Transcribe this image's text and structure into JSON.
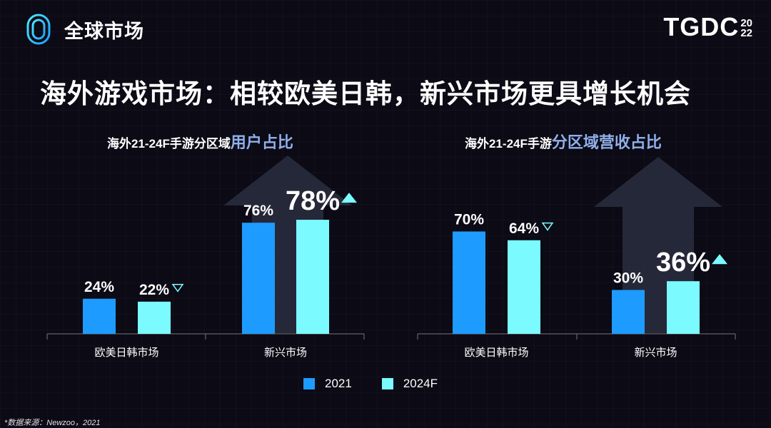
{
  "header": {
    "section_title": "全球市场",
    "brand_main": "TGDC",
    "brand_year_top": "20",
    "brand_year_bottom": "22"
  },
  "headline": "海外游戏市场：相较欧美日韩，新兴市场更具增长机会",
  "colors": {
    "series_2021": "#1e9bff",
    "series_2024F": "#7bfbff",
    "highlight_title": "#8fb0ea",
    "arrow": "#2a2e3e",
    "axis": "#777777"
  },
  "legend": {
    "items": [
      {
        "label": "2021",
        "color": "#1e9bff"
      },
      {
        "label": "2024F",
        "color": "#7bfbff"
      }
    ]
  },
  "source": "*数据来源：Newzoo，2021",
  "chart_data": [
    {
      "type": "bar",
      "title_prefix": "海外21-24F手游分区域",
      "title_highlight": "用户占比",
      "categories": [
        "欧美日韩市场",
        "新兴市场"
      ],
      "series": [
        {
          "name": "2021",
          "values": [
            24,
            76
          ]
        },
        {
          "name": "2024F",
          "values": [
            22,
            78
          ]
        }
      ],
      "value_labels": [
        [
          "24%",
          "76%"
        ],
        [
          "22%",
          "78%"
        ]
      ],
      "trend": [
        "down",
        "up"
      ],
      "emphasis": "新兴市场",
      "ylim": [
        0,
        100
      ],
      "legend": "bottom"
    },
    {
      "type": "bar",
      "title_prefix": "海外21-24F手游",
      "title_highlight": "分区域营收占比",
      "categories": [
        "欧美日韩市场",
        "新兴市场"
      ],
      "series": [
        {
          "name": "2021",
          "values": [
            70,
            30
          ]
        },
        {
          "name": "2024F",
          "values": [
            64,
            36
          ]
        }
      ],
      "value_labels": [
        [
          "70%",
          "30%"
        ],
        [
          "64%",
          "36%"
        ]
      ],
      "trend": [
        "down",
        "up"
      ],
      "emphasis": "新兴市场",
      "ylim": [
        0,
        100
      ],
      "legend": "bottom"
    }
  ]
}
